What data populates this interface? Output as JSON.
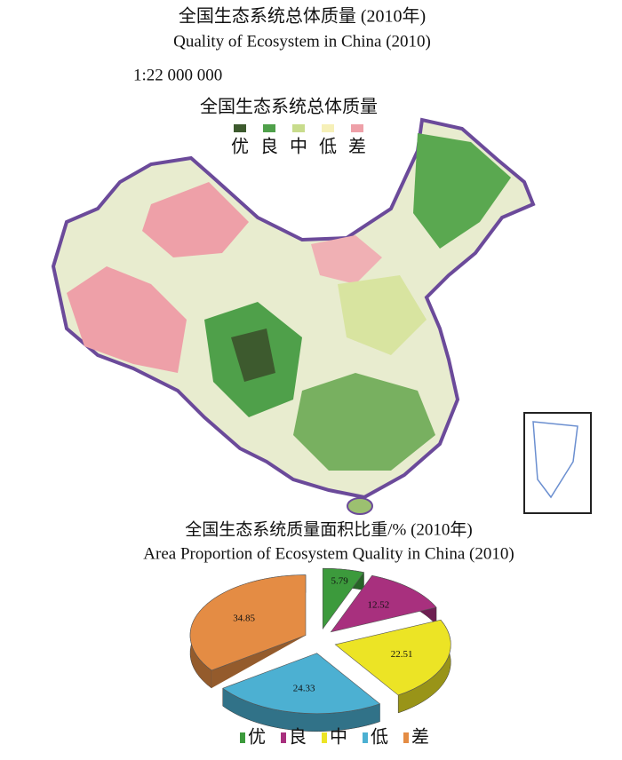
{
  "map": {
    "title": "全国生态系统总体质量 (2010年)",
    "subtitle": "Quality of Ecosystem in China (2010)",
    "scale": "1:22 000 000",
    "legend": {
      "title": "全国生态系统总体质量",
      "items": [
        {
          "name": "优",
          "color": "#3d5a2e"
        },
        {
          "name": "良",
          "color": "#4fa04a"
        },
        {
          "name": "中",
          "color": "#c8dc8c"
        },
        {
          "name": "低",
          "color": "#f6f0b8"
        },
        {
          "name": "差",
          "color": "#eea0a8"
        }
      ]
    }
  },
  "chart_data": {
    "type": "pie",
    "title": "全国生态系统质量面积比重/% (2010年)",
    "subtitle": "Area Proportion of Ecosystem Quality in China (2010)",
    "categories": [
      "优",
      "良",
      "中",
      "低",
      "差"
    ],
    "values": [
      5.79,
      12.52,
      22.51,
      24.33,
      34.85
    ],
    "colors": [
      "#3c9a3c",
      "#a8307e",
      "#ece425",
      "#4cb0d2",
      "#e48c44"
    ]
  }
}
